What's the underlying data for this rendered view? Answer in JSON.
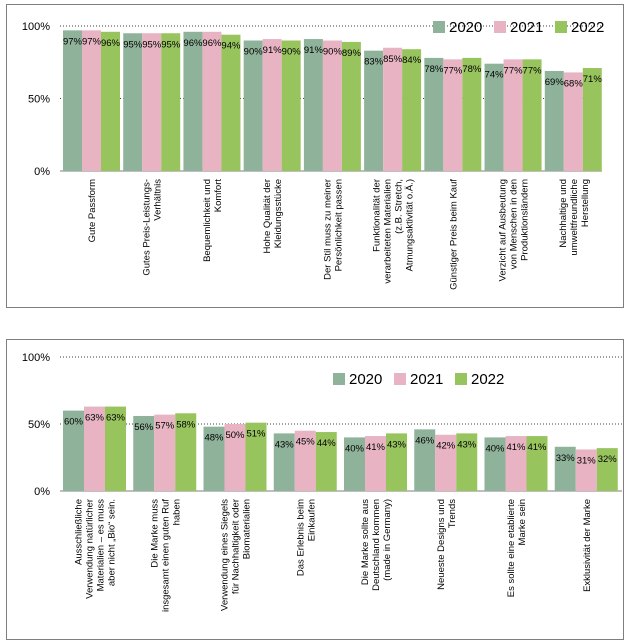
{
  "colors": {
    "y2020": "#8fb39a",
    "y2021": "#e8b4c4",
    "y2022": "#98c45e"
  },
  "chart_data": [
    {
      "type": "bar",
      "title": "",
      "xlabel": "",
      "ylabel": "",
      "ylim": [
        0,
        100
      ],
      "ytick_labels": [
        "0%",
        "50%",
        "100%"
      ],
      "grid": "dotted horizontal at 50% and 100%",
      "legend": "top-right",
      "categories": [
        "Gute Passform",
        "Gutes Preis-Leistungs-Verhältnis",
        "Bequemlichkeit und Komfort",
        "Hohe Qualität der Kleidungsstücke",
        "Der Stil muss zu meiner Persönlichkeit passen",
        "Funktionalität der verarbeiteten Materialien (z.B. Stretch, Atmungsaktivität o.Ä.)",
        "Günstiger Preis beim Kauf",
        "Verzicht auf Ausbeutung von Menschen in den Produktionsländern",
        "Nachhaltige und umweltfreundliche Herstellung"
      ],
      "category_lines": [
        [
          "Gute Passform"
        ],
        [
          "Gutes Preis-Leistungs-",
          "Verhältnis"
        ],
        [
          "Bequemlichkeit und",
          "Komfort"
        ],
        [
          "Hohe Qualität der",
          "Kleidungsstücke"
        ],
        [
          "Der Stil muss zu meiner",
          "Persönlichkeit passen"
        ],
        [
          "Funktionalität der",
          "verarbeiteten Materialien",
          "(z.B. Stretch,",
          "Atmungsaktivität o.Ä.)"
        ],
        [
          "Günstiger Preis beim Kauf"
        ],
        [
          "Verzicht auf Ausbeutung",
          "von Menschen in den",
          "Produktionsländern"
        ],
        [
          "Nachhaltige und",
          "umweltfreundliche",
          "Herstellung"
        ]
      ],
      "series": [
        {
          "name": "2020",
          "values": [
            97,
            95,
            96,
            90,
            91,
            83,
            78,
            74,
            69
          ],
          "labels": [
            "97%",
            "95%",
            "96%",
            "90%",
            "91%",
            "83%",
            "78%",
            "74%",
            "69%"
          ]
        },
        {
          "name": "2021",
          "values": [
            97,
            95,
            96,
            91,
            90,
            85,
            77,
            77,
            68
          ],
          "labels": [
            "97%",
            "95%",
            "96%",
            "91%",
            "90%",
            "85%",
            "77%",
            "77%",
            "68%"
          ]
        },
        {
          "name": "2022",
          "values": [
            96,
            95,
            94,
            90,
            89,
            84,
            78,
            77,
            71
          ],
          "labels": [
            "96%",
            "95%",
            "94%",
            "90%",
            "89%",
            "84%",
            "78%",
            "77%",
            "71%"
          ]
        }
      ]
    },
    {
      "type": "bar",
      "title": "",
      "xlabel": "",
      "ylabel": "",
      "ylim": [
        0,
        100
      ],
      "ytick_labels": [
        "0%",
        "50%",
        "100%"
      ],
      "grid": "dotted horizontal at 50% and 100%",
      "legend": "top-right",
      "categories": [
        "Ausschließliche Verwendung natürlicher Materialien – es muss aber nicht „Bio“ sein.",
        "Die Marke muss insgesamt einen guten Ruf haben",
        "Verwendung eines Siegels für Nachhaltigkeit oder Biomaterialien",
        "Das Erlebnis beim Einkaufen",
        "Die Marke sollte aus Deutschland kommen (made in Germany)",
        "Neueste Designs und Trends",
        "Es sollte eine etablierte Marke sein",
        "Exklusivität der Marke"
      ],
      "category_lines": [
        [
          "Ausschließliche",
          "Verwendung natürlicher",
          "Materialien – es muss",
          "aber nicht „Bio“ sein."
        ],
        [
          "Die Marke muss",
          "insgesamt einen guten Ruf",
          "haben"
        ],
        [
          "Verwendung eines Siegels",
          "für Nachhaltigkeit oder",
          "Biomaterialien"
        ],
        [
          "Das Erlebnis beim",
          "Einkaufen"
        ],
        [
          "Die Marke sollte aus",
          "Deutschland kommen",
          "(made in Germany)"
        ],
        [
          "Neueste Designs und",
          "Trends"
        ],
        [
          "Es sollte eine etablierte",
          "Marke sein"
        ],
        [
          "Exklusivität der Marke"
        ]
      ],
      "series": [
        {
          "name": "2020",
          "values": [
            60,
            56,
            48,
            43,
            40,
            46,
            40,
            33
          ],
          "labels": [
            "60%",
            "56%",
            "48%",
            "43%",
            "40%",
            "46%",
            "40%",
            "33%"
          ]
        },
        {
          "name": "2021",
          "values": [
            63,
            57,
            50,
            45,
            41,
            42,
            41,
            31
          ],
          "labels": [
            "63%",
            "57%",
            "50%",
            "45%",
            "41%",
            "42%",
            "41%",
            "31%"
          ]
        },
        {
          "name": "2022",
          "values": [
            63,
            58,
            51,
            44,
            43,
            43,
            41,
            32
          ],
          "labels": [
            "63%",
            "58%",
            "51%",
            "44%",
            "43%",
            "43%",
            "41%",
            "32%"
          ]
        }
      ]
    }
  ]
}
